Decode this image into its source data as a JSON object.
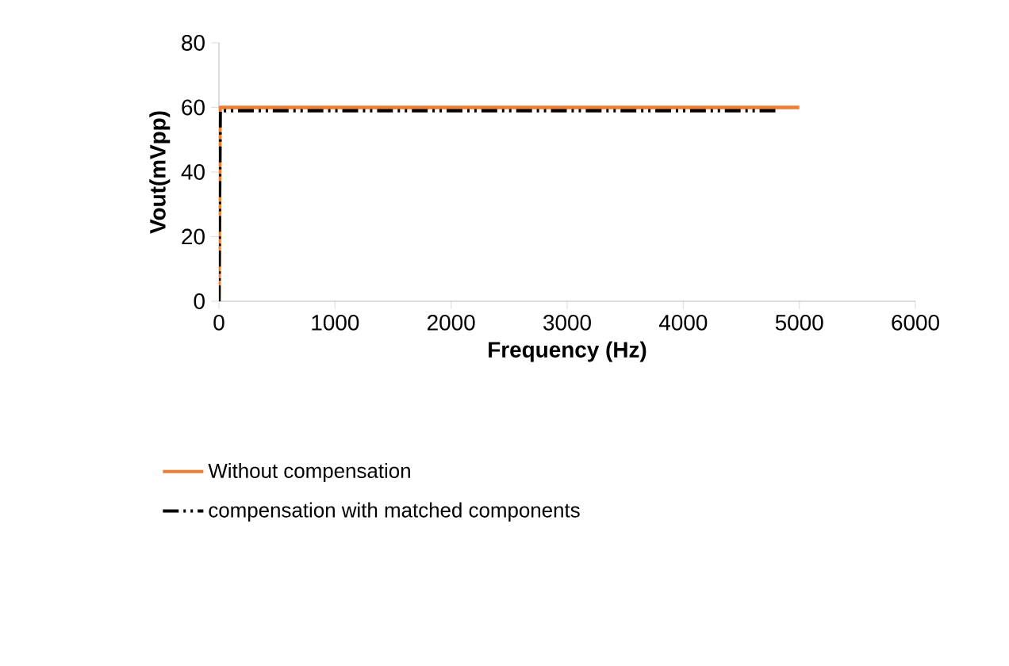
{
  "chart_data": {
    "type": "line",
    "xlabel": "Frequency (Hz)",
    "ylabel": "Vout(mVpp)",
    "xlim": [
      0,
      6000
    ],
    "ylim": [
      0,
      80
    ],
    "xticks": [
      0,
      1000,
      2000,
      3000,
      4000,
      5000,
      6000
    ],
    "yticks": [
      0,
      20,
      40,
      60,
      80
    ],
    "grid": false,
    "legend": "bottom",
    "marker": "none",
    "series": [
      {
        "name": "Without compensation",
        "color": "#ed7d31",
        "line_style": "solid",
        "x": [
          0,
          10,
          100,
          500,
          1000,
          2000,
          3000,
          4000,
          5000
        ],
        "values": [
          0,
          60,
          60,
          60,
          60,
          60,
          60,
          60,
          60
        ]
      },
      {
        "name": "compensation with matched components",
        "color": "#000000",
        "line_style": "dashed",
        "x": [
          0,
          10,
          100,
          200,
          500,
          1000,
          2000,
          3000,
          4000,
          4800
        ],
        "values": [
          0,
          59,
          59,
          59,
          59,
          59,
          59,
          59,
          59,
          59
        ]
      }
    ]
  }
}
